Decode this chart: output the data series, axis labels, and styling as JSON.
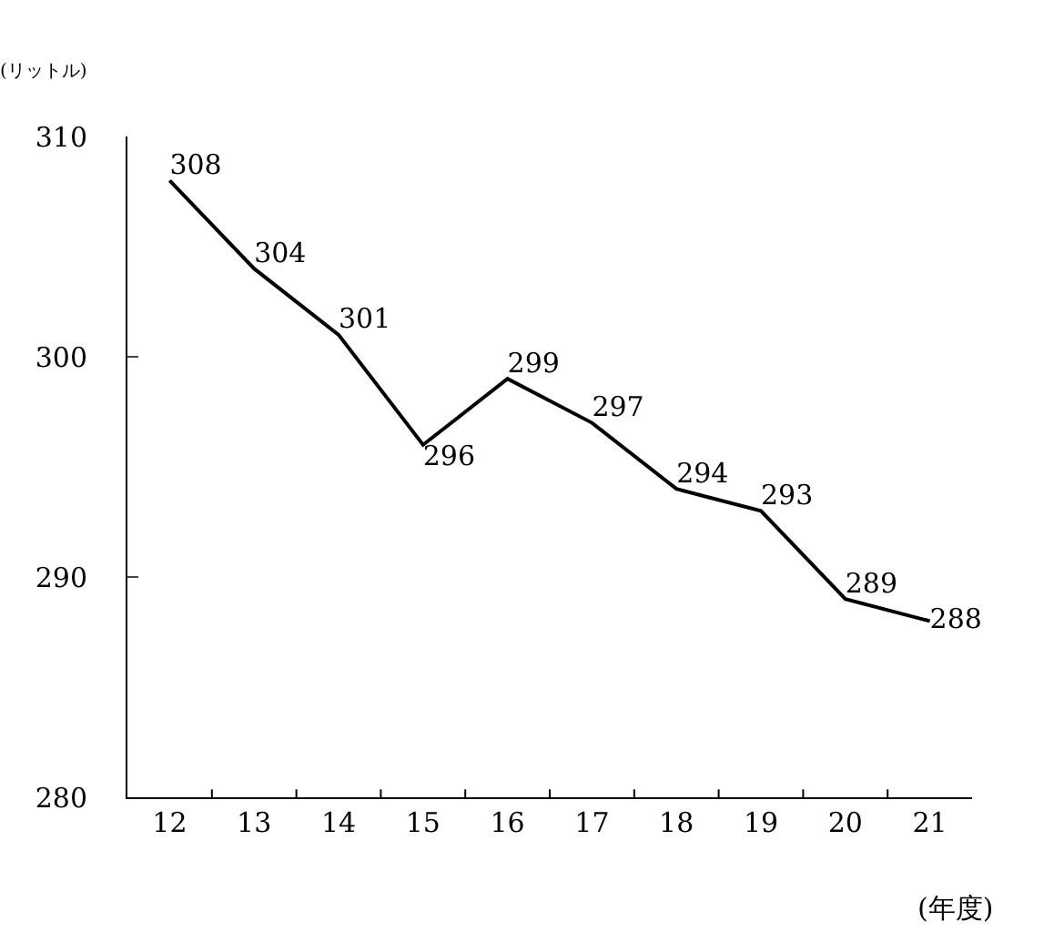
{
  "chart_data": {
    "type": "line",
    "ylabel": "(リットル)",
    "xlabel": "(年度)",
    "categories": [
      "12",
      "13",
      "14",
      "15",
      "16",
      "17",
      "18",
      "19",
      "20",
      "21"
    ],
    "values": [
      308,
      304,
      301,
      296,
      299,
      297,
      294,
      293,
      289,
      288
    ],
    "color": "#000000",
    "ylim": [
      280,
      310
    ],
    "yticks": [
      280,
      290,
      300,
      310
    ],
    "grid": false,
    "marker": "none",
    "line_style": "solid",
    "data_labels": true
  }
}
